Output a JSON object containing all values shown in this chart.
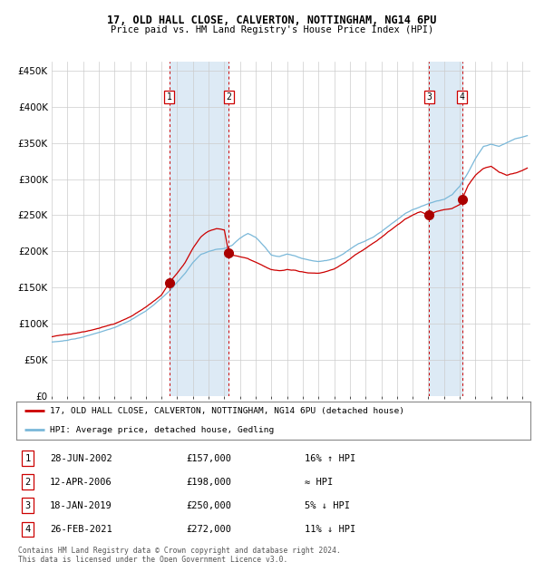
{
  "title_line1": "17, OLD HALL CLOSE, CALVERTON, NOTTINGHAM, NG14 6PU",
  "title_line2": "Price paid vs. HM Land Registry's House Price Index (HPI)",
  "xlim_years": [
    1995.0,
    2025.5
  ],
  "ylim": [
    0,
    462000
  ],
  "yticks": [
    0,
    50000,
    100000,
    150000,
    200000,
    250000,
    300000,
    350000,
    400000,
    450000
  ],
  "ytick_labels": [
    "£0",
    "£50K",
    "£100K",
    "£150K",
    "£200K",
    "£250K",
    "£300K",
    "£350K",
    "£400K",
    "£450K"
  ],
  "sale_dates_decimal": [
    2002.49,
    2006.28,
    2019.05,
    2021.15
  ],
  "sale_prices": [
    157000,
    198000,
    250000,
    272000
  ],
  "sale_labels": [
    "1",
    "2",
    "3",
    "4"
  ],
  "sale_label_info": [
    {
      "num": "1",
      "date": "28-JUN-2002",
      "price": "£157,000",
      "rel": "16% ↑ HPI"
    },
    {
      "num": "2",
      "date": "12-APR-2006",
      "price": "£198,000",
      "rel": "≈ HPI"
    },
    {
      "num": "3",
      "date": "18-JAN-2019",
      "price": "£250,000",
      "rel": "5% ↓ HPI"
    },
    {
      "num": "4",
      "date": "26-FEB-2021",
      "price": "£272,000",
      "rel": "11% ↓ HPI"
    }
  ],
  "hpi_line_color": "#7ab8d9",
  "price_line_color": "#cc0000",
  "sale_dot_color": "#aa0000",
  "dashed_line_color": "#cc0000",
  "shade_color": "#ddeaf5",
  "grid_color": "#cccccc",
  "legend_label_red": "17, OLD HALL CLOSE, CALVERTON, NOTTINGHAM, NG14 6PU (detached house)",
  "legend_label_blue": "HPI: Average price, detached house, Gedling",
  "footnote": "Contains HM Land Registry data © Crown copyright and database right 2024.\nThis data is licensed under the Open Government Licence v3.0.",
  "background_color": "#ffffff",
  "hpi_waypoints": [
    [
      1995.0,
      75000
    ],
    [
      1996.0,
      77000
    ],
    [
      1997.0,
      82000
    ],
    [
      1998.0,
      88000
    ],
    [
      1999.0,
      95000
    ],
    [
      2000.0,
      105000
    ],
    [
      2001.0,
      118000
    ],
    [
      2002.0,
      135000
    ],
    [
      2002.5,
      145000
    ],
    [
      2003.0,
      158000
    ],
    [
      2003.5,
      170000
    ],
    [
      2004.0,
      185000
    ],
    [
      2004.5,
      196000
    ],
    [
      2005.0,
      200000
    ],
    [
      2005.5,
      203000
    ],
    [
      2006.0,
      204000
    ],
    [
      2006.5,
      208000
    ],
    [
      2007.0,
      218000
    ],
    [
      2007.5,
      225000
    ],
    [
      2008.0,
      220000
    ],
    [
      2008.5,
      208000
    ],
    [
      2009.0,
      195000
    ],
    [
      2009.5,
      193000
    ],
    [
      2010.0,
      196000
    ],
    [
      2010.5,
      194000
    ],
    [
      2011.0,
      190000
    ],
    [
      2011.5,
      188000
    ],
    [
      2012.0,
      186000
    ],
    [
      2012.5,
      187000
    ],
    [
      2013.0,
      190000
    ],
    [
      2013.5,
      196000
    ],
    [
      2014.0,
      203000
    ],
    [
      2014.5,
      210000
    ],
    [
      2015.0,
      215000
    ],
    [
      2015.5,
      220000
    ],
    [
      2016.0,
      228000
    ],
    [
      2016.5,
      236000
    ],
    [
      2017.0,
      244000
    ],
    [
      2017.5,
      252000
    ],
    [
      2018.0,
      258000
    ],
    [
      2018.5,
      262000
    ],
    [
      2019.0,
      266000
    ],
    [
      2019.5,
      270000
    ],
    [
      2020.0,
      272000
    ],
    [
      2020.5,
      278000
    ],
    [
      2021.0,
      290000
    ],
    [
      2021.5,
      308000
    ],
    [
      2022.0,
      328000
    ],
    [
      2022.5,
      345000
    ],
    [
      2023.0,
      348000
    ],
    [
      2023.5,
      345000
    ],
    [
      2024.0,
      350000
    ],
    [
      2024.5,
      355000
    ],
    [
      2025.0,
      358000
    ],
    [
      2025.3,
      360000
    ]
  ],
  "price_waypoints": [
    [
      1995.0,
      82000
    ],
    [
      1996.0,
      85000
    ],
    [
      1997.0,
      89000
    ],
    [
      1998.0,
      94000
    ],
    [
      1999.0,
      100000
    ],
    [
      2000.0,
      110000
    ],
    [
      2001.0,
      123000
    ],
    [
      2002.0,
      140000
    ],
    [
      2002.49,
      157000
    ],
    [
      2003.0,
      170000
    ],
    [
      2003.5,
      185000
    ],
    [
      2004.0,
      205000
    ],
    [
      2004.5,
      220000
    ],
    [
      2005.0,
      228000
    ],
    [
      2005.5,
      232000
    ],
    [
      2006.0,
      230000
    ],
    [
      2006.28,
      198000
    ],
    [
      2006.5,
      195000
    ],
    [
      2007.0,
      192000
    ],
    [
      2007.5,
      190000
    ],
    [
      2008.0,
      185000
    ],
    [
      2008.5,
      180000
    ],
    [
      2009.0,
      175000
    ],
    [
      2009.5,
      173000
    ],
    [
      2010.0,
      175000
    ],
    [
      2010.5,
      174000
    ],
    [
      2011.0,
      172000
    ],
    [
      2011.5,
      170000
    ],
    [
      2012.0,
      170000
    ],
    [
      2012.5,
      172000
    ],
    [
      2013.0,
      175000
    ],
    [
      2013.5,
      182000
    ],
    [
      2014.0,
      190000
    ],
    [
      2014.5,
      198000
    ],
    [
      2015.0,
      205000
    ],
    [
      2015.5,
      212000
    ],
    [
      2016.0,
      220000
    ],
    [
      2016.5,
      228000
    ],
    [
      2017.0,
      236000
    ],
    [
      2017.5,
      244000
    ],
    [
      2018.0,
      250000
    ],
    [
      2018.5,
      255000
    ],
    [
      2019.0,
      250000
    ],
    [
      2019.5,
      255000
    ],
    [
      2020.0,
      258000
    ],
    [
      2020.5,
      260000
    ],
    [
      2021.0,
      265000
    ],
    [
      2021.15,
      272000
    ],
    [
      2021.5,
      290000
    ],
    [
      2022.0,
      305000
    ],
    [
      2022.5,
      315000
    ],
    [
      2023.0,
      318000
    ],
    [
      2023.5,
      310000
    ],
    [
      2024.0,
      305000
    ],
    [
      2024.5,
      308000
    ],
    [
      2025.0,
      312000
    ],
    [
      2025.3,
      315000
    ]
  ]
}
